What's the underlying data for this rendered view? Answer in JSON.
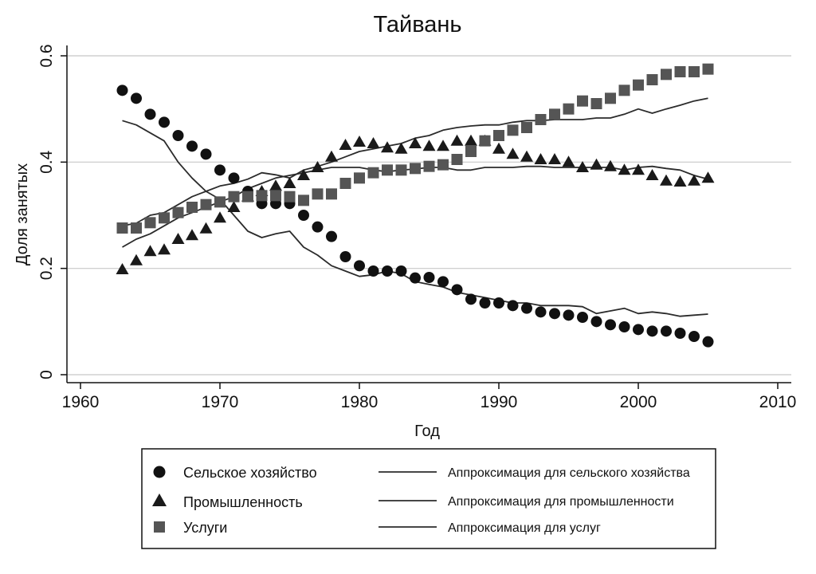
{
  "chart_data": {
    "type": "scatter",
    "title": "Тайвань",
    "xlabel": "Год",
    "ylabel": "Доля занятых",
    "xlim": [
      1958,
      2011
    ],
    "ylim": [
      -0.02,
      0.62
    ],
    "xticks": [
      1960,
      1970,
      1980,
      1990,
      2000,
      2010
    ],
    "xtick_labels": [
      "1960",
      "1970",
      "1980",
      "1990",
      "2000",
      "2010"
    ],
    "yticks": [
      0,
      0.2,
      0.4,
      0.6
    ],
    "ytick_labels": [
      "0",
      "0.2",
      "0.4",
      "0.6"
    ],
    "grid": true,
    "colors": {
      "markers": "#3a3a3a",
      "points_agri": "#111111",
      "points_ind": "#1a1a1a",
      "points_serv": "#555555",
      "lines": "#2b2b2b",
      "grid": "#c8c8c8"
    },
    "x": [
      1963,
      1964,
      1965,
      1966,
      1967,
      1968,
      1969,
      1970,
      1971,
      1972,
      1973,
      1974,
      1975,
      1976,
      1977,
      1978,
      1979,
      1980,
      1981,
      1982,
      1983,
      1984,
      1985,
      1986,
      1987,
      1988,
      1989,
      1990,
      1991,
      1992,
      1993,
      1994,
      1995,
      1996,
      1997,
      1998,
      1999,
      2000,
      2001,
      2002,
      2003,
      2004,
      2005
    ],
    "series": [
      {
        "name": "Сельское хозяйство",
        "marker": "circle",
        "values": [
          0.535,
          0.52,
          0.49,
          0.475,
          0.45,
          0.43,
          0.415,
          0.385,
          0.37,
          0.345,
          0.322,
          0.322,
          0.322,
          0.3,
          0.278,
          0.26,
          0.222,
          0.205,
          0.195,
          0.195,
          0.195,
          0.182,
          0.183,
          0.175,
          0.16,
          0.142,
          0.135,
          0.135,
          0.13,
          0.125,
          0.118,
          0.115,
          0.112,
          0.108,
          0.1,
          0.094,
          0.09,
          0.085,
          0.082,
          0.082,
          0.078,
          0.072,
          0.062
        ]
      },
      {
        "name": "Промышленность",
        "marker": "triangle",
        "values": [
          0.198,
          0.215,
          0.232,
          0.235,
          0.255,
          0.262,
          0.275,
          0.295,
          0.315,
          0.335,
          0.345,
          0.355,
          0.36,
          0.375,
          0.39,
          0.41,
          0.432,
          0.438,
          0.435,
          0.427,
          0.425,
          0.435,
          0.43,
          0.43,
          0.44,
          0.44,
          0.44,
          0.425,
          0.415,
          0.41,
          0.405,
          0.405,
          0.4,
          0.39,
          0.395,
          0.392,
          0.385,
          0.385,
          0.375,
          0.365,
          0.363,
          0.365,
          0.37
        ]
      },
      {
        "name": "Услуги",
        "marker": "square",
        "values": [
          0.276,
          0.276,
          0.286,
          0.295,
          0.305,
          0.315,
          0.32,
          0.325,
          0.335,
          0.335,
          0.337,
          0.337,
          0.335,
          0.328,
          0.34,
          0.34,
          0.36,
          0.37,
          0.38,
          0.385,
          0.385,
          0.388,
          0.392,
          0.395,
          0.405,
          0.42,
          0.44,
          0.45,
          0.46,
          0.465,
          0.48,
          0.49,
          0.5,
          0.515,
          0.51,
          0.52,
          0.535,
          0.545,
          0.555,
          0.565,
          0.57,
          0.57,
          0.575
        ]
      }
    ],
    "fits": [
      {
        "name": "Аппроксимация для сельского хозяйства",
        "values": [
          0.478,
          0.47,
          0.455,
          0.44,
          0.4,
          0.37,
          0.345,
          0.33,
          0.3,
          0.27,
          0.258,
          0.265,
          0.27,
          0.24,
          0.225,
          0.205,
          0.195,
          0.185,
          0.188,
          0.195,
          0.19,
          0.175,
          0.17,
          0.165,
          0.155,
          0.15,
          0.145,
          0.14,
          0.135,
          0.135,
          0.13,
          0.13,
          0.13,
          0.128,
          0.115,
          0.12,
          0.125,
          0.115,
          0.118,
          0.115,
          0.11,
          0.112,
          0.114
        ]
      },
      {
        "name": "Аппроксимация для промышленности",
        "values": [
          0.24,
          0.255,
          0.265,
          0.28,
          0.295,
          0.305,
          0.315,
          0.325,
          0.335,
          0.35,
          0.36,
          0.37,
          0.375,
          0.38,
          0.385,
          0.39,
          0.39,
          0.39,
          0.385,
          0.382,
          0.385,
          0.387,
          0.39,
          0.39,
          0.385,
          0.385,
          0.39,
          0.39,
          0.39,
          0.392,
          0.392,
          0.39,
          0.39,
          0.39,
          0.39,
          0.39,
          0.385,
          0.39,
          0.392,
          0.388,
          0.385,
          0.375,
          0.368
        ]
      },
      {
        "name": "Аппроксимация для услуг",
        "values": [
          0.28,
          0.285,
          0.3,
          0.305,
          0.32,
          0.335,
          0.345,
          0.355,
          0.36,
          0.368,
          0.38,
          0.376,
          0.37,
          0.385,
          0.392,
          0.4,
          0.41,
          0.42,
          0.425,
          0.43,
          0.435,
          0.445,
          0.45,
          0.46,
          0.465,
          0.468,
          0.47,
          0.47,
          0.475,
          0.478,
          0.478,
          0.48,
          0.48,
          0.48,
          0.483,
          0.483,
          0.49,
          0.5,
          0.492,
          0.5,
          0.507,
          0.515,
          0.52
        ]
      }
    ],
    "legend": {
      "position": "bottom",
      "entries": [
        {
          "label": "Сельское хозяйство",
          "symbol": "circle"
        },
        {
          "label": "Промышленность",
          "symbol": "triangle"
        },
        {
          "label": "Услуги",
          "symbol": "square"
        },
        {
          "label": "Аппроксимация для сельского хозяйства",
          "symbol": "line"
        },
        {
          "label": "Аппроксимация для промышленности",
          "symbol": "line"
        },
        {
          "label": "Аппроксимация для услуг",
          "symbol": "line"
        }
      ]
    }
  }
}
